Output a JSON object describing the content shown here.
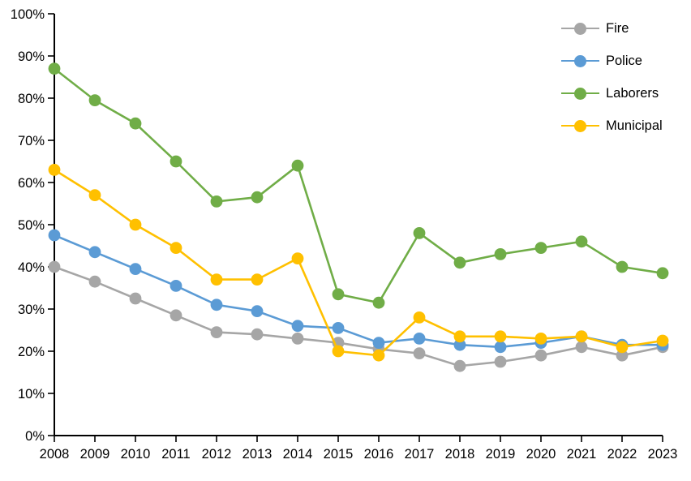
{
  "chart_data": {
    "type": "line",
    "title": "",
    "xlabel": "",
    "ylabel": "",
    "grid": false,
    "legend_position": "top-right",
    "x": [
      2008,
      2009,
      2010,
      2011,
      2012,
      2013,
      2014,
      2015,
      2016,
      2017,
      2018,
      2019,
      2020,
      2021,
      2022,
      2023
    ],
    "y_axis": {
      "min": 0,
      "max": 100,
      "step": 10,
      "unit": "%"
    },
    "y_tick_labels": [
      "0%",
      "10%",
      "20%",
      "30%",
      "40%",
      "50%",
      "60%",
      "70%",
      "80%",
      "90%",
      "100%"
    ],
    "series": [
      {
        "name": "Fire",
        "color": "#A6A6A6",
        "values": [
          40,
          36.5,
          32.5,
          28.5,
          24.5,
          24,
          23,
          22,
          20.5,
          19.5,
          16.5,
          17.5,
          19,
          21,
          19,
          21
        ]
      },
      {
        "name": "Police",
        "color": "#5B9BD5",
        "values": [
          47.5,
          43.5,
          39.5,
          35.5,
          31,
          29.5,
          26,
          25.5,
          22,
          23,
          21.5,
          21,
          22,
          23.5,
          21.5,
          21.5
        ]
      },
      {
        "name": "Laborers",
        "color": "#70AD47",
        "values": [
          87,
          79.5,
          74,
          65,
          55.5,
          56.5,
          64,
          33.5,
          31.5,
          48,
          41,
          43,
          44.5,
          46,
          40,
          38.5
        ]
      },
      {
        "name": "Municipal",
        "color": "#FFC000",
        "values": [
          63,
          57,
          50,
          44.5,
          37,
          37,
          42,
          20,
          19,
          28,
          23.5,
          23.5,
          23,
          23.5,
          21,
          22.5
        ]
      }
    ]
  },
  "colors": {
    "axis": "#000000",
    "background": "#FFFFFF"
  }
}
